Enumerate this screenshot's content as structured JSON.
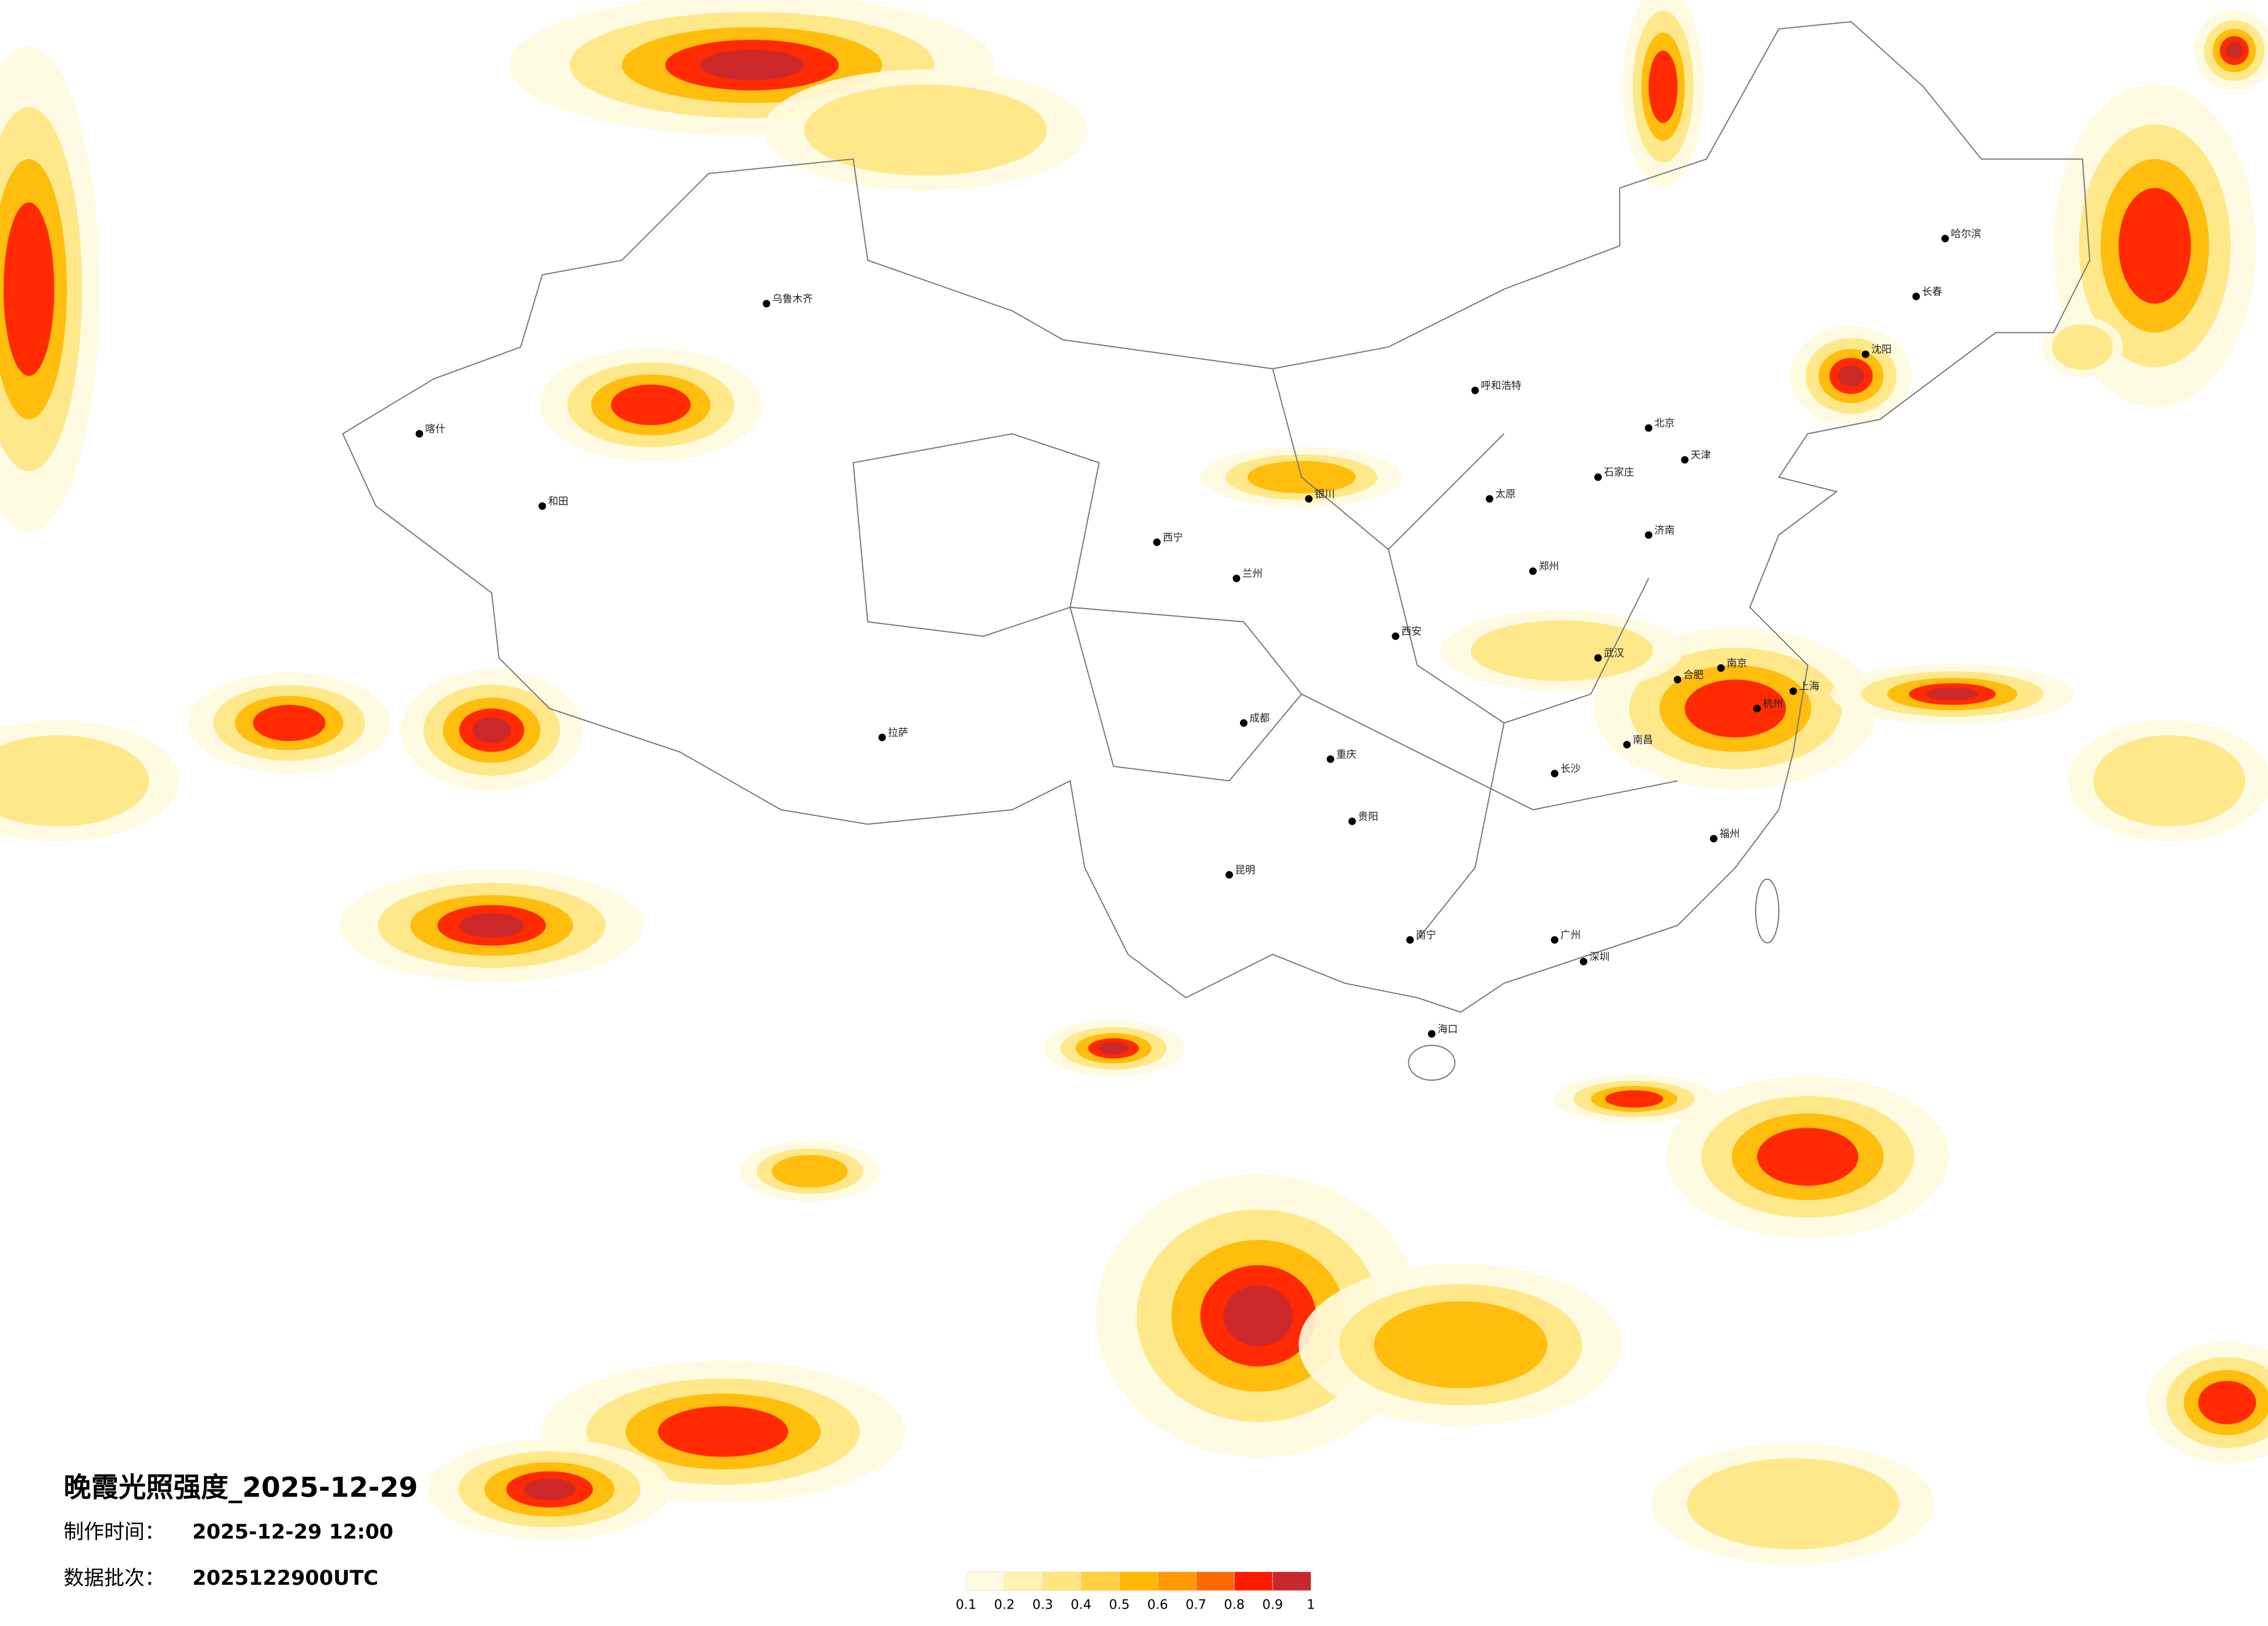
{
  "header": {
    "title": "晚霞光照强度_2025-12-29",
    "made_label": "制作时间：",
    "made_time": "2025-12-29 12:00",
    "batch_label": "数据批次：",
    "batch": "2025122900UTC"
  },
  "legend": {
    "ticks": [
      0.1,
      0.2,
      0.3,
      0.4,
      0.5,
      0.6,
      0.7,
      0.8,
      0.9,
      1
    ],
    "colors": [
      "#fffbe0",
      "#fff3b0",
      "#ffe680",
      "#ffd040",
      "#ffb800",
      "#ff9a00",
      "#ff6a00",
      "#ff1a00",
      "#c8282d"
    ]
  },
  "cities": [
    "北京",
    "天津",
    "上海",
    "南京",
    "杭州",
    "武汉",
    "长沙",
    "广州",
    "深圳",
    "重庆",
    "成都",
    "西安",
    "兰州",
    "西宁",
    "拉萨",
    "乌鲁木齐",
    "哈尔滨",
    "长春",
    "沈阳",
    "昆明",
    "贵阳",
    "南宁",
    "海口",
    "福州",
    "郑州",
    "济南",
    "呼和浩特",
    "银川",
    "石家庄",
    "太原",
    "合肥",
    "南昌",
    "喀什",
    "和田"
  ]
}
